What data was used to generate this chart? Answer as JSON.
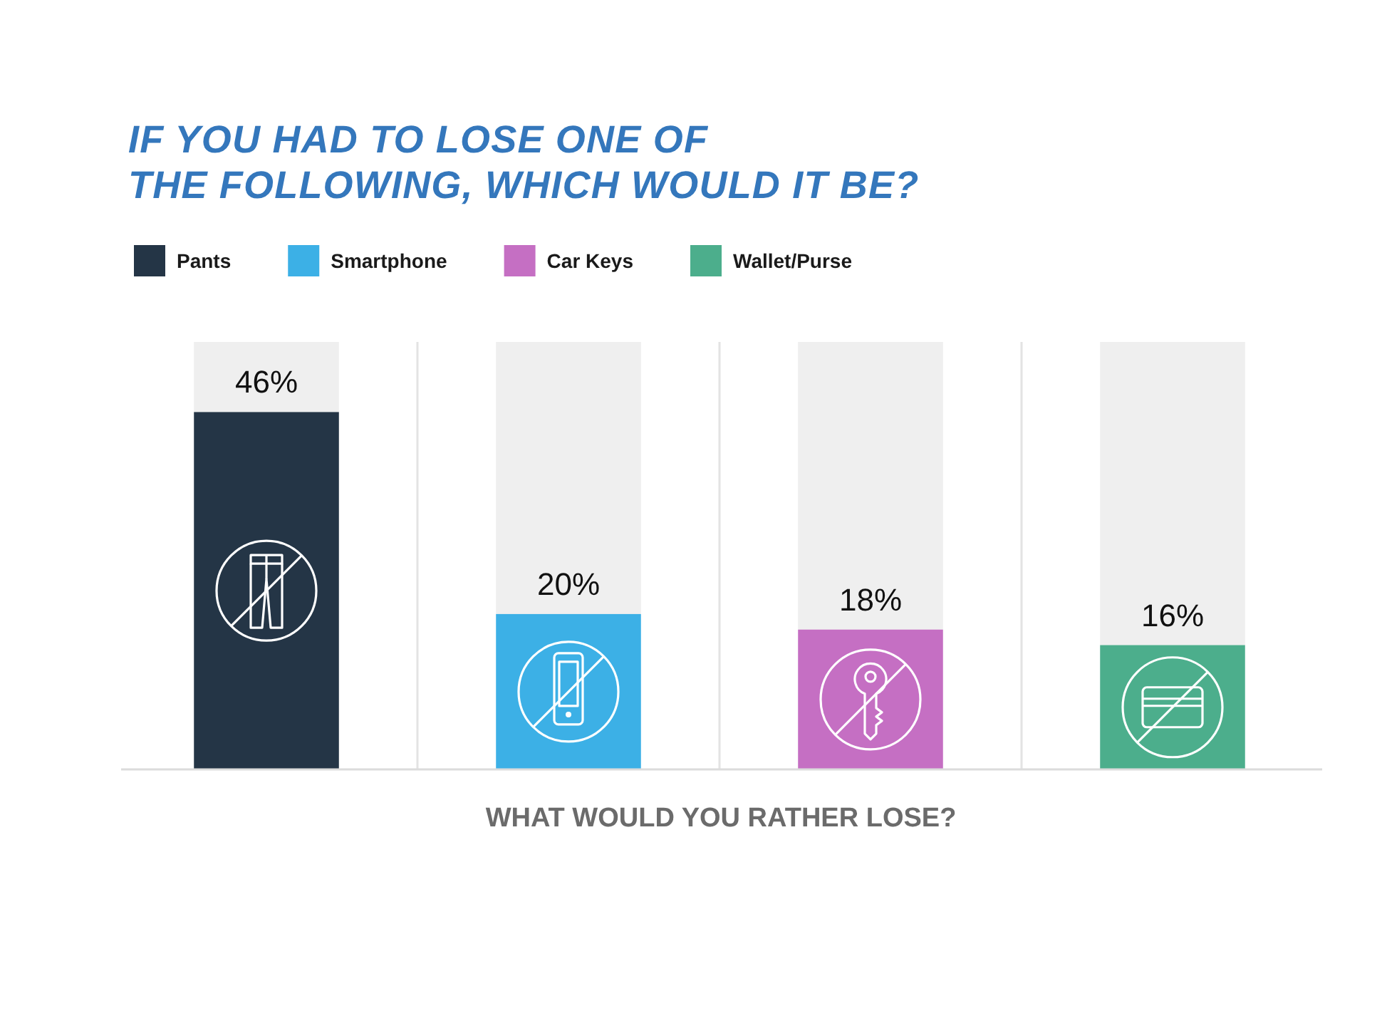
{
  "chart_data": {
    "type": "bar",
    "title": "IF YOU HAD TO LOSE ONE OF\nTHE FOLLOWING, WHICH WOULD IT BE?",
    "xlabel": "WHAT WOULD YOU RATHER LOSE?",
    "categories": [
      null,
      null,
      null,
      null
    ],
    "stacked": true,
    "series": [
      {
        "name": "Pants",
        "color": "#243546",
        "values": [
          46,
          null,
          null,
          null
        ],
        "value_labels": [
          "46%",
          null,
          null,
          null
        ]
      },
      {
        "name": "Smartphone",
        "color": "#3cb0e6",
        "values": [
          null,
          20,
          null,
          null
        ],
        "value_labels": [
          null,
          "20%",
          null,
          null
        ]
      },
      {
        "name": "Car Keys",
        "color": "#c56fc3",
        "values": [
          null,
          null,
          18,
          null
        ],
        "value_labels": [
          null,
          null,
          "18%",
          null
        ]
      },
      {
        "name": "Wallet/Purse",
        "color": "#4cae8c",
        "values": [
          null,
          null,
          null,
          16
        ],
        "value_labels": [
          null,
          null,
          null,
          "16%"
        ]
      }
    ],
    "legend": "top"
  }
}
